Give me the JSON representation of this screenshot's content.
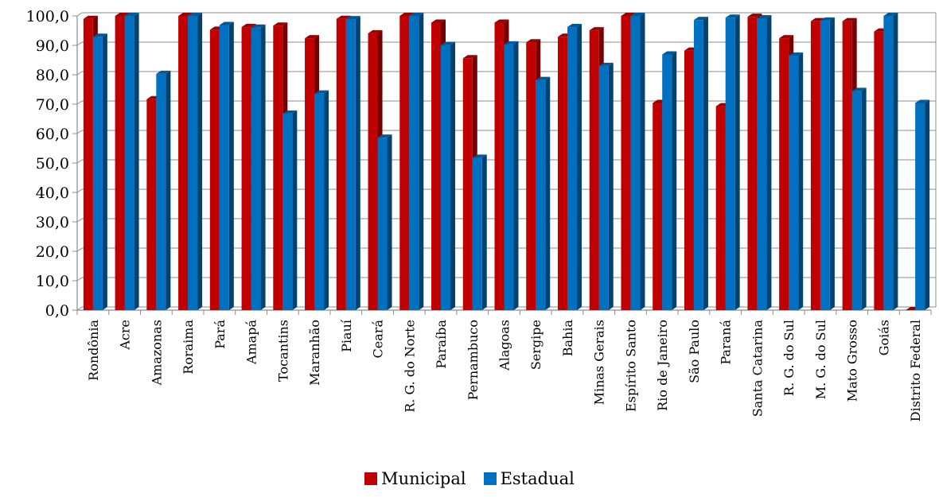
{
  "chart_data": {
    "type": "bar",
    "title": "",
    "xlabel": "",
    "ylabel": "",
    "ylim": [
      0,
      100
    ],
    "ytick_step": 10,
    "grid": true,
    "legend_position": "bottom-center",
    "categories": [
      "Rondônia",
      "Acre",
      "Amazonas",
      "Roraima",
      "Pará",
      "Amapá",
      "Tocantins",
      "Maranhão",
      "Piauí",
      "Ceará",
      "R. G. do Norte",
      "Paraíba",
      "Pernambuco",
      "Alagoas",
      "Sergipe",
      "Bahia",
      "Minas Gerais",
      "Espírito Santo",
      "Rio de Janeiro",
      "São Paulo",
      "Paraná",
      "Santa Catarina",
      "R. G. do Sul",
      "M. G. do Sul",
      "Mato Grosso",
      "Goiás",
      "Distrito Federal"
    ],
    "series": [
      {
        "name": "Municipal",
        "color": "#c00000",
        "values": [
          99.0,
          100.0,
          71.7,
          100.0,
          95.3,
          96.2,
          96.7,
          92.4,
          99.0,
          94.1,
          100.0,
          97.7,
          85.6,
          97.7,
          91.0,
          92.9,
          95.1,
          100.0,
          70.4,
          88.2,
          69.3,
          99.7,
          92.4,
          98.2,
          98.2,
          94.7,
          0.0
        ]
      },
      {
        "name": "Estadual",
        "color": "#0070c0",
        "values": [
          92.9,
          100.0,
          80.3,
          100.0,
          96.9,
          96.0,
          66.8,
          73.6,
          98.9,
          58.6,
          100.0,
          90.1,
          51.8,
          90.3,
          78.2,
          96.2,
          83.0,
          100.0,
          86.9,
          98.6,
          99.4,
          99.2,
          86.5,
          98.4,
          74.5,
          100.0,
          70.4
        ]
      }
    ]
  }
}
